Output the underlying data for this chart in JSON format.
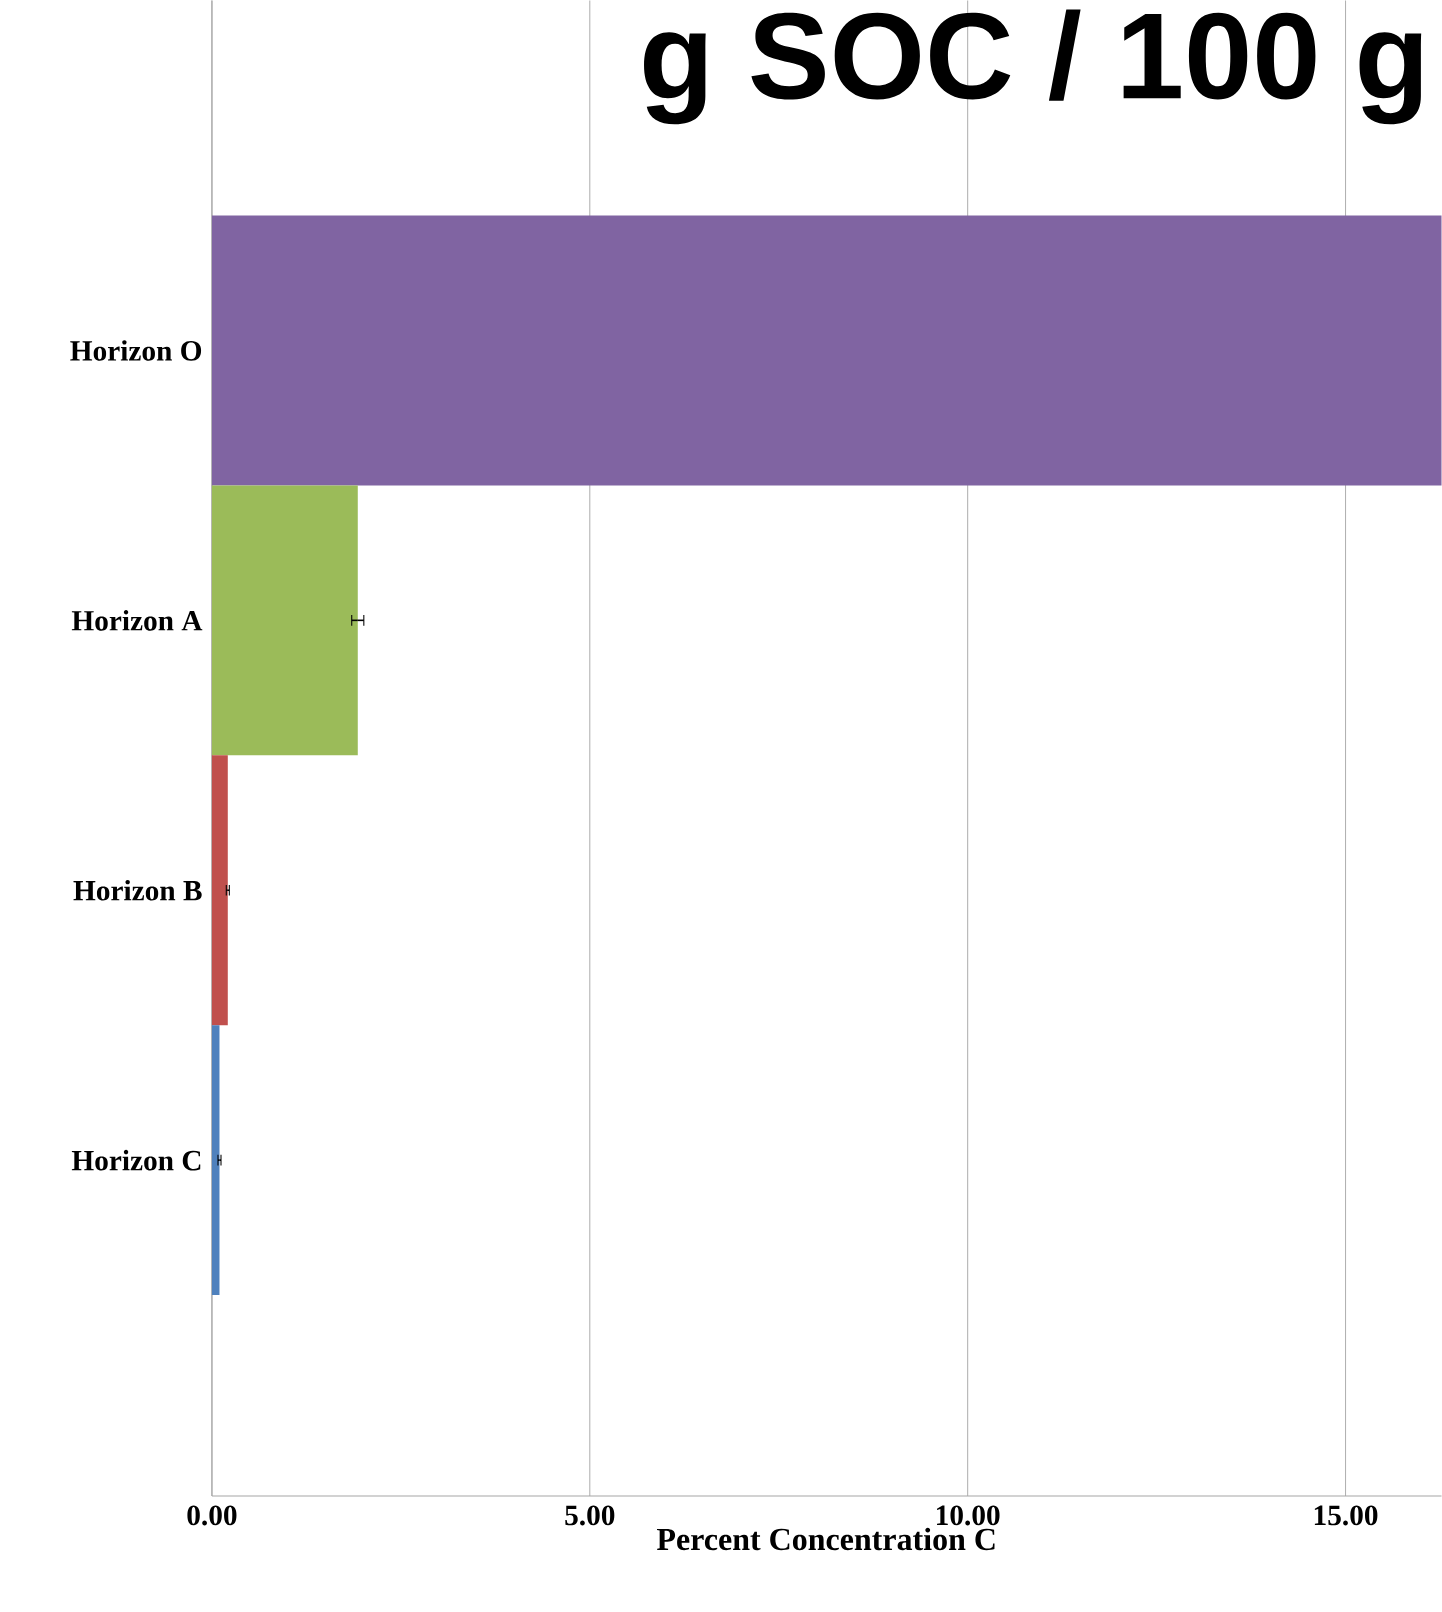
{
  "chart_data": {
    "type": "bar",
    "orientation": "horizontal",
    "title": "g SOC / 100 g",
    "xlabel": "Percent Concentration C",
    "categories": [
      "Horizon O",
      "Horizon A",
      "Horizon B",
      "Horizon C"
    ],
    "values": [
      16.27,
      1.93,
      0.21,
      0.1
    ],
    "errors": [
      null,
      0.08,
      0.02,
      0.02
    ],
    "colors": [
      "#8064a2",
      "#9bbb59",
      "#c0504d",
      "#4f81bd"
    ],
    "xlim": [
      0,
      16.27
    ],
    "xticks": [
      {
        "value": 0,
        "label": "0.00"
      },
      {
        "value": 5,
        "label": "5.00"
      },
      {
        "value": 10,
        "label": "10.00"
      },
      {
        "value": 15,
        "label": "15.00"
      }
    ],
    "grid": "x"
  }
}
